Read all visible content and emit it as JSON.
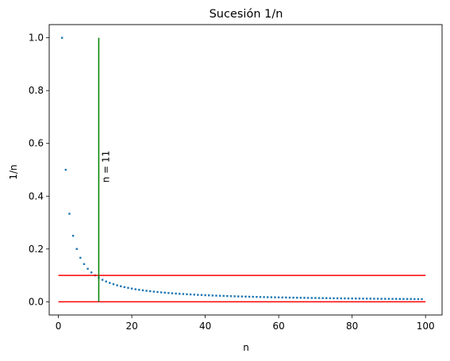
{
  "chart_data": {
    "type": "scatter",
    "title": "Sucesión 1/n",
    "xlabel": "n",
    "ylabel": "1/n",
    "xlim": [
      -2.5,
      104.5
    ],
    "ylim": [
      -0.05,
      1.05
    ],
    "xticks": [
      0,
      20,
      40,
      60,
      80,
      100
    ],
    "xtick_labels": [
      "0",
      "20",
      "40",
      "60",
      "80",
      "100"
    ],
    "yticks": [
      0.0,
      0.2,
      0.4,
      0.6,
      0.8,
      1.0
    ],
    "ytick_labels": [
      "0.0",
      "0.2",
      "0.4",
      "0.6",
      "0.8",
      "1.0"
    ],
    "grid": false,
    "series": [
      {
        "color": "#1f77b4",
        "x_start": 1,
        "x_end": 99,
        "formula": "y = 1/n"
      }
    ],
    "hlines": [
      {
        "y": 0.1,
        "xmin": 0,
        "xmax": 100,
        "color": "#ff0000"
      },
      {
        "y": 0.0,
        "xmin": 0,
        "xmax": 100,
        "color": "#ff0000"
      }
    ],
    "vlines": [
      {
        "x": 11,
        "ymin": 0,
        "ymax": 1.0,
        "color": "#008000"
      }
    ],
    "annotations": [
      {
        "text": "n = 11",
        "x": 13,
        "y": 0.5,
        "rotation": 90
      }
    ]
  }
}
